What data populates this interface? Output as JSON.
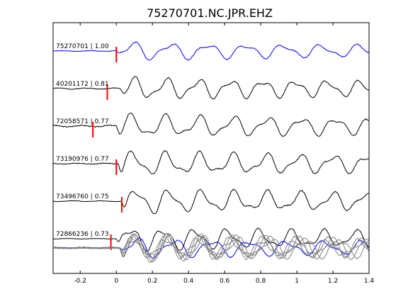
{
  "chart_data": {
    "type": "line",
    "title": "75270701.NC.JPR.EHZ",
    "xlabel": "",
    "ylabel": "",
    "xlim": [
      -0.35,
      1.4
    ],
    "xticks": [
      -0.2,
      0,
      0.2,
      0.4,
      0.6,
      0.8,
      1,
      1.2,
      1.4
    ],
    "xtick_labels": [
      "-0.2",
      "0",
      "0.2",
      "0.4",
      "0.6",
      "0.8",
      "1",
      "1.2",
      "1.4"
    ],
    "grid": false,
    "legend": "none",
    "colors": {
      "reference_trace": "#0000ff",
      "other_traces": "#000000",
      "pick": "#ff0000",
      "overlay_gray": "#808080"
    },
    "series": [
      {
        "label": "75270701 | 1.00",
        "pick_time": 0.0,
        "color": "#0000ff",
        "waveform": {
          "onset": 0.0,
          "freq": 4.8,
          "decay": 0.4,
          "amp": 13,
          "lead_noise": 1.5,
          "seed": 1
        }
      },
      {
        "label": "40201172 | 0.81",
        "pick_time": -0.05,
        "color": "#000000",
        "waveform": {
          "onset": 0.02,
          "freq": 5.6,
          "decay": 0.25,
          "amp": 15,
          "lead_noise": 2.5,
          "seed": 2
        }
      },
      {
        "label": "72058571 | 0.77",
        "pick_time": -0.13,
        "color": "#000000",
        "waveform": {
          "onset": 0.0,
          "freq": 5.3,
          "decay": 0.25,
          "amp": 16,
          "lead_noise": 3.5,
          "seed": 3
        }
      },
      {
        "label": "73190976 | 0.77",
        "pick_time": 0.0,
        "color": "#000000",
        "waveform": {
          "onset": 0.01,
          "freq": 5.4,
          "decay": 0.25,
          "amp": 17,
          "lead_noise": 2,
          "seed": 4
        }
      },
      {
        "label": "73496760 | 0.75",
        "pick_time": 0.03,
        "color": "#000000",
        "waveform": {
          "onset": 0.03,
          "freq": 5.5,
          "decay": 0.25,
          "amp": 17,
          "lead_noise": 1.5,
          "seed": 5
        }
      },
      {
        "label": "72866236 | 0.73",
        "pick_time": -0.03,
        "color": "#000000",
        "waveform": {
          "onset": 0.0,
          "freq": 5.6,
          "decay": 0.25,
          "amp": 16,
          "lead_noise": 1,
          "seed": 6
        }
      }
    ],
    "overlay": {
      "description_visible": false,
      "trace_count": 6
    }
  }
}
